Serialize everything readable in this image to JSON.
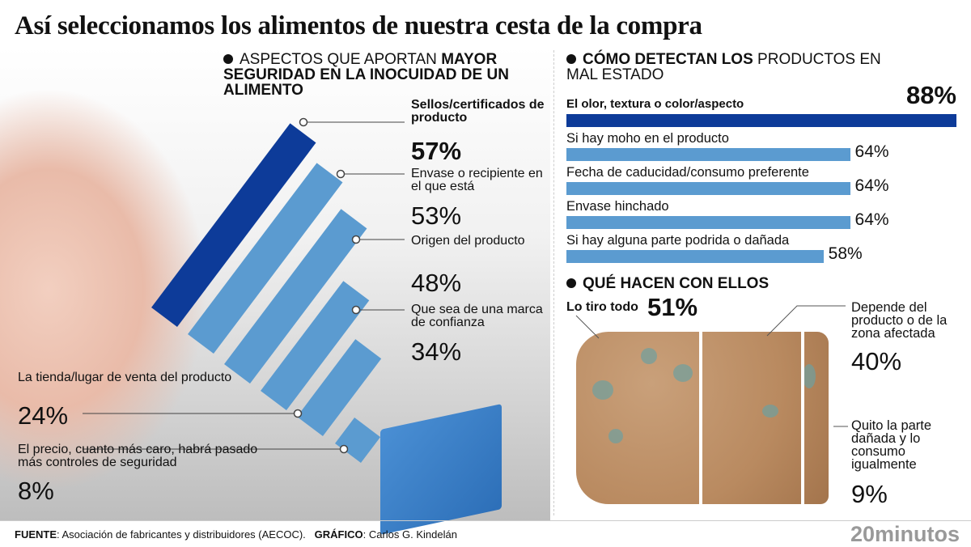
{
  "title": "Así seleccionamos los alimentos de nuestra cesta de la compra",
  "left": {
    "heading_normal": "ASPECTOS QUE APORTAN ",
    "heading_bold": "MAYOR SEGURIDAD EN LA INOCUIDAD DE UN ALIMENTO"
  },
  "right": {
    "heading_bold": "CÓMO DETECTAN LOS ",
    "heading_normal": "PRODUCTOS EN MAL ESTADO"
  },
  "bottom": {
    "heading": "QUÉ HACEN CON ELLOS"
  },
  "chart_data": [
    {
      "type": "bar",
      "orientation": "diagonal",
      "categories": [
        "Sellos/certificados de producto",
        "Envase o recipiente en el que está",
        "Origen del producto",
        "Que sea de una marca de confianza",
        "La tienda/lugar de venta del producto",
        "El precio, cuanto más caro, habrá pasado más controles de seguridad"
      ],
      "values": [
        57,
        53,
        48,
        34,
        24,
        8
      ],
      "labels": [
        "57%",
        "53%",
        "48%",
        "34%",
        "24%",
        "8%"
      ],
      "colors": [
        "#0d3b99",
        "#5b9bd0",
        "#5b9bd0",
        "#5b9bd0",
        "#5b9bd0",
        "#5b9bd0"
      ]
    },
    {
      "type": "bar",
      "orientation": "horizontal",
      "categories": [
        "El olor, textura o color/aspecto",
        "Si hay moho en el producto",
        "Fecha de caducidad/consumo preferente",
        "Envase hinchado",
        "Si hay alguna parte podrida o dañada"
      ],
      "values": [
        88,
        64,
        64,
        64,
        58
      ],
      "labels": [
        "88%",
        "64%",
        "64%",
        "64%",
        "58%"
      ],
      "colors": [
        "#0d3b99",
        "#5b9bd0",
        "#5b9bd0",
        "#5b9bd0",
        "#5b9bd0"
      ]
    },
    {
      "type": "pie",
      "representation": "bread slice split",
      "categories": [
        "Lo tiro todo",
        "Depende del producto o de la zona afectada",
        "Quito la parte dañada y lo consumo igualmente"
      ],
      "values": [
        51,
        40,
        9
      ],
      "labels": [
        "51%",
        "40%",
        "9%"
      ]
    }
  ],
  "footer": {
    "source_label": "FUENTE",
    "source": ": Asociación de fabricantes y distribuidores (AECOC).",
    "graphic_label": "GRÁFICO",
    "graphic": ": Carlos G. Kindelán",
    "logo": "20minutos"
  }
}
